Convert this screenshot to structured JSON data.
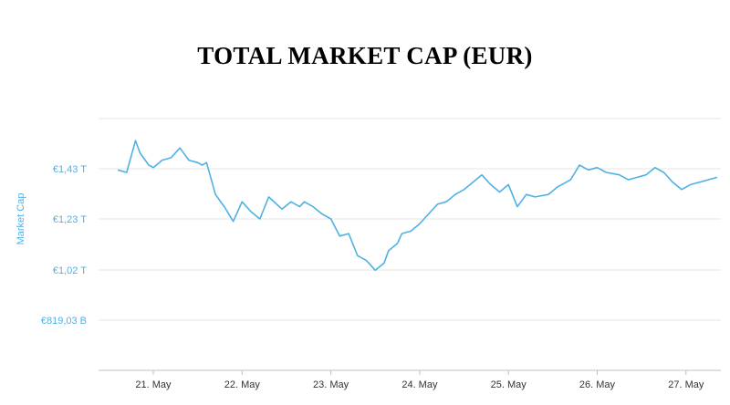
{
  "chart_data": {
    "type": "line",
    "title": "TOTAL MARKET CAP (EUR)",
    "ylabel": "Market Cap",
    "xlabel": "",
    "line_color": "#4fb1e3",
    "grid": true,
    "y_ticks": [
      {
        "value": 1430,
        "label": "€1,43 T"
      },
      {
        "value": 1230,
        "label": "€1,23 T"
      },
      {
        "value": 1020,
        "label": "€1,02 T"
      },
      {
        "value": 819.03,
        "label": "€819,03 B"
      }
    ],
    "x_ticks": [
      {
        "day": 21,
        "label": "21. May"
      },
      {
        "day": 22,
        "label": "22. May"
      },
      {
        "day": 23,
        "label": "23. May"
      },
      {
        "day": 24,
        "label": "24. May"
      },
      {
        "day": 25,
        "label": "25. May"
      },
      {
        "day": 26,
        "label": "26. May"
      },
      {
        "day": 27,
        "label": "27. May"
      }
    ],
    "series": [
      {
        "x": [
          20.6,
          20.7,
          20.8,
          20.85,
          20.95,
          21.0,
          21.1,
          21.2,
          21.3,
          21.4,
          21.5,
          21.55,
          21.6,
          21.7,
          21.8,
          21.9,
          21.95,
          22.0,
          22.1,
          22.2,
          22.3,
          22.45,
          22.55,
          22.65,
          22.7,
          22.8,
          22.9,
          23.0,
          23.1,
          23.2,
          23.3,
          23.4,
          23.5,
          23.6,
          23.65,
          23.75,
          23.8,
          23.9,
          24.0,
          24.1,
          24.2,
          24.3,
          24.4,
          24.5,
          24.6,
          24.7,
          24.8,
          24.9,
          25.0,
          25.1,
          25.2,
          25.3,
          25.45,
          25.55,
          25.65,
          25.7,
          25.8,
          25.9,
          26.0,
          26.1,
          26.25,
          26.35,
          26.45,
          26.55,
          26.65,
          26.75,
          26.85,
          26.95,
          27.05,
          27.15,
          27.25,
          27.35
        ],
        "y": [
          1430,
          1420,
          1550,
          1500,
          1450,
          1440,
          1470,
          1480,
          1520,
          1470,
          1460,
          1450,
          1460,
          1330,
          1280,
          1220,
          1260,
          1300,
          1260,
          1230,
          1320,
          1270,
          1300,
          1280,
          1300,
          1280,
          1250,
          1230,
          1160,
          1170,
          1080,
          1060,
          1020,
          1050,
          1100,
          1130,
          1170,
          1180,
          1210,
          1250,
          1290,
          1300,
          1330,
          1350,
          1380,
          1410,
          1370,
          1340,
          1370,
          1280,
          1330,
          1320,
          1330,
          1360,
          1380,
          1390,
          1450,
          1430,
          1440,
          1420,
          1410,
          1390,
          1400,
          1410,
          1440,
          1420,
          1380,
          1350,
          1370,
          1380,
          1390,
          1400
        ]
      }
    ]
  }
}
